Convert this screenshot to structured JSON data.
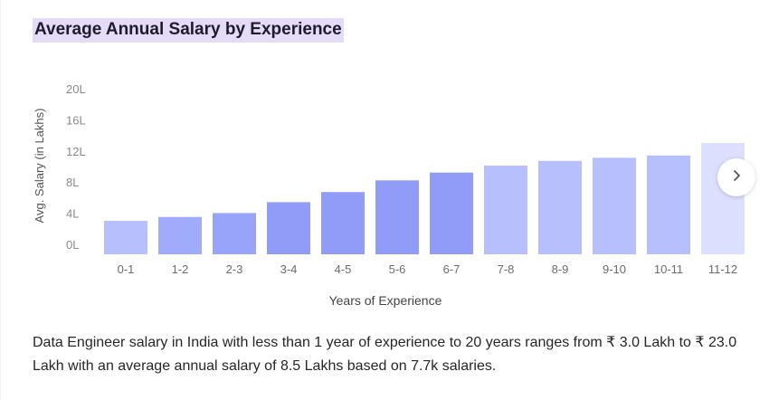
{
  "title": "Average Annual Salary by Experience",
  "description": "Data Engineer salary in India with less than 1 year of experience to 20 years ranges from ₹ 3.0 Lakh to ₹ 23.0 Lakh with an average annual salary of 8.5 Lakhs based on 7.7k salaries.",
  "next_icon": "chevron-right-icon",
  "chart_data": {
    "type": "bar",
    "xlabel": "Years of Experience",
    "ylabel": "Avg. Salary (in Lakhs)",
    "ylim": [
      0,
      20
    ],
    "yticks": [
      "0L",
      "4L",
      "8L",
      "12L",
      "16L",
      "20L"
    ],
    "ytick_values": [
      0,
      4,
      8,
      12,
      16,
      20
    ],
    "categories": [
      "0-1",
      "1-2",
      "2-3",
      "3-4",
      "4-5",
      "5-6",
      "6-7",
      "7-8",
      "8-9",
      "9-10",
      "10-11",
      "11-12"
    ],
    "values": [
      4.3,
      4.8,
      5.3,
      6.7,
      8.0,
      9.5,
      10.5,
      11.4,
      12.0,
      12.4,
      12.7,
      14.3
    ],
    "colors": [
      "#b7bffc",
      "#a1abfb",
      "#98a3fa",
      "#919cf9",
      "#919cf9",
      "#919cf9",
      "#919cf9",
      "#b7bffc",
      "#b7bffc",
      "#b7bffc",
      "#b7bffc",
      "#dcdffd"
    ],
    "grid": false,
    "legend": "none"
  }
}
